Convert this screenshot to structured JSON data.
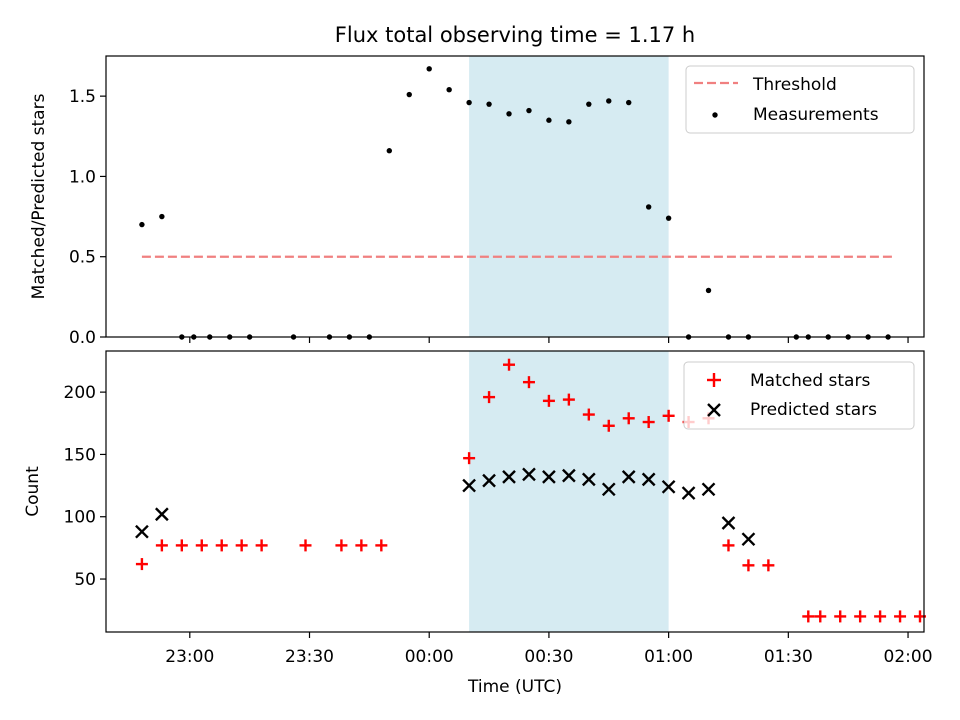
{
  "chart_data": [
    {
      "type": "scatter",
      "title": "Flux total observing time = 1.17 h",
      "ylabel": "Matched/Predicted stars",
      "xlabel": "",
      "ylim": [
        0,
        1.75
      ],
      "yticks": [
        0.0,
        0.5,
        1.0,
        1.5
      ],
      "ytick_labels": [
        "0.0",
        "0.5",
        "1.0",
        "1.5"
      ],
      "shaded_interval": [
        "00:10",
        "01:00"
      ],
      "threshold": {
        "name": "Threshold",
        "value": 0.5,
        "x_range": [
          "22:48",
          "01:56"
        ],
        "style": "dashed",
        "color": "#f08080"
      },
      "series": [
        {
          "name": "Measurements",
          "marker": "dot",
          "color": "#000000",
          "x": [
            "22:48",
            "22:53",
            "22:58",
            "23:01",
            "23:05",
            "23:10",
            "23:15",
            "23:26",
            "23:35",
            "23:40",
            "23:45",
            "23:50",
            "23:55",
            "00:00",
            "00:05",
            "00:10",
            "00:15",
            "00:20",
            "00:25",
            "00:30",
            "00:35",
            "00:40",
            "00:45",
            "00:50",
            "00:55",
            "01:00",
            "01:05",
            "01:10",
            "01:15",
            "01:20",
            "01:32",
            "01:35",
            "01:40",
            "01:45",
            "01:50",
            "01:55"
          ],
          "values": [
            0.7,
            0.75,
            0.0,
            0.0,
            0.0,
            0.0,
            0.0,
            0.0,
            0.0,
            0.0,
            0.0,
            1.16,
            1.51,
            1.67,
            1.54,
            1.46,
            1.45,
            1.39,
            1.41,
            1.35,
            1.34,
            1.45,
            1.47,
            1.46,
            0.81,
            0.74,
            0.0,
            0.29,
            0.0,
            0.0,
            0.0,
            0.0,
            0.0,
            0.0,
            0.0,
            0.0
          ]
        }
      ],
      "legend": "top-right"
    },
    {
      "type": "scatter",
      "title": "",
      "ylabel": "Count",
      "xlabel": "Time (UTC)",
      "ylim": [
        7.5,
        233
      ],
      "yticks": [
        50,
        100,
        150,
        200
      ],
      "ytick_labels": [
        "50",
        "100",
        "150",
        "200"
      ],
      "xticks": [
        "23:00",
        "23:30",
        "00:00",
        "00:30",
        "01:00",
        "01:30",
        "02:00"
      ],
      "xlim": [
        "22:39",
        "02:04"
      ],
      "shaded_interval": [
        "00:10",
        "01:00"
      ],
      "series": [
        {
          "name": "Matched stars",
          "marker": "plus",
          "color": "#ff0000",
          "x": [
            "22:48",
            "22:53",
            "22:58",
            "23:03",
            "23:08",
            "23:13",
            "23:18",
            "23:29",
            "23:38",
            "23:43",
            "23:48",
            "00:10",
            "00:15",
            "00:20",
            "00:25",
            "00:30",
            "00:35",
            "00:40",
            "00:45",
            "00:50",
            "00:55",
            "01:00",
            "01:05",
            "01:10",
            "01:15",
            "01:20",
            "01:25",
            "01:35",
            "01:38",
            "01:43",
            "01:48",
            "01:53",
            "01:58",
            "02:03"
          ],
          "values": [
            62,
            77,
            77,
            77,
            77,
            77,
            77,
            77,
            77,
            77,
            77,
            147,
            196,
            222,
            208,
            193,
            194,
            182,
            173,
            179,
            176,
            181,
            176,
            179,
            77,
            61,
            61,
            20,
            20,
            20,
            20,
            20,
            20,
            20
          ]
        },
        {
          "name": "Predicted stars",
          "marker": "x",
          "color": "#000000",
          "x": [
            "22:48",
            "22:53",
            "00:10",
            "00:15",
            "00:20",
            "00:25",
            "00:30",
            "00:35",
            "00:40",
            "00:45",
            "00:50",
            "00:55",
            "01:00",
            "01:05",
            "01:10",
            "01:15",
            "01:20"
          ],
          "values": [
            88,
            102,
            125,
            129,
            132,
            134,
            132,
            133,
            130,
            122,
            132,
            130,
            124,
            119,
            122,
            95,
            82
          ]
        }
      ],
      "legend": "top-right"
    }
  ]
}
